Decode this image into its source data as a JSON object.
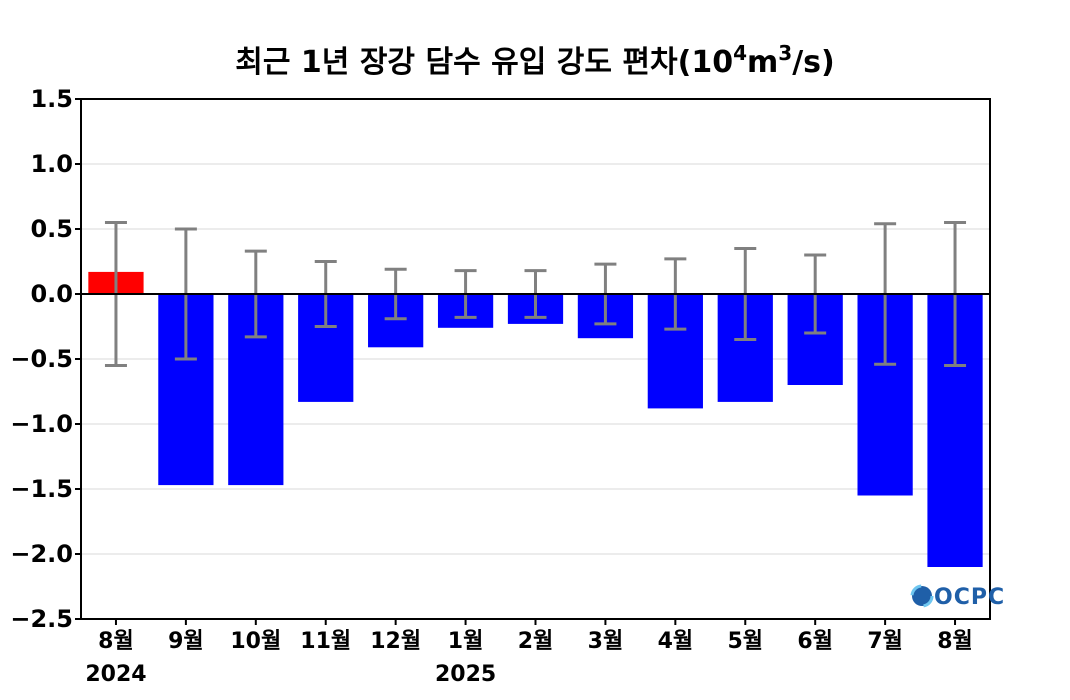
{
  "chart_data": {
    "type": "bar",
    "title_main": "최근 1년 장강 담수 유입 강도 편차(10",
    "title_exp1": "4",
    "title_mid": "m",
    "title_exp2": "3",
    "title_end": "/s)",
    "categories": [
      "8월",
      "9월",
      "10월",
      "11월",
      "12월",
      "1월",
      "2월",
      "3월",
      "4월",
      "5월",
      "6월",
      "7월",
      "8월"
    ],
    "year_labels": [
      {
        "index": 0,
        "text": "2024"
      },
      {
        "index": 5,
        "text": "2025"
      }
    ],
    "values": [
      0.17,
      -1.47,
      -1.47,
      -0.83,
      -0.41,
      -0.26,
      -0.23,
      -0.34,
      -0.88,
      -0.83,
      -0.7,
      -1.55,
      -2.1
    ],
    "error": [
      0.55,
      0.5,
      0.33,
      0.25,
      0.19,
      0.18,
      0.18,
      0.23,
      0.27,
      0.35,
      0.3,
      0.54,
      0.55
    ],
    "ylim": [
      -2.5,
      1.5
    ],
    "yticks": [
      "1.5",
      "1.0",
      "0.5",
      "0.0",
      "−0.5",
      "−1.0",
      "−1.5",
      "−2.0",
      "−2.5"
    ],
    "ytick_values": [
      1.5,
      1.0,
      0.5,
      0.0,
      -0.5,
      -1.0,
      -1.5,
      -2.0,
      -2.5
    ],
    "grid": true,
    "colors": {
      "positive": "#ff0000",
      "negative": "#0000ff",
      "error_bar": "#808080",
      "grid": "#d9d9d9"
    },
    "logo": "OCPC"
  }
}
